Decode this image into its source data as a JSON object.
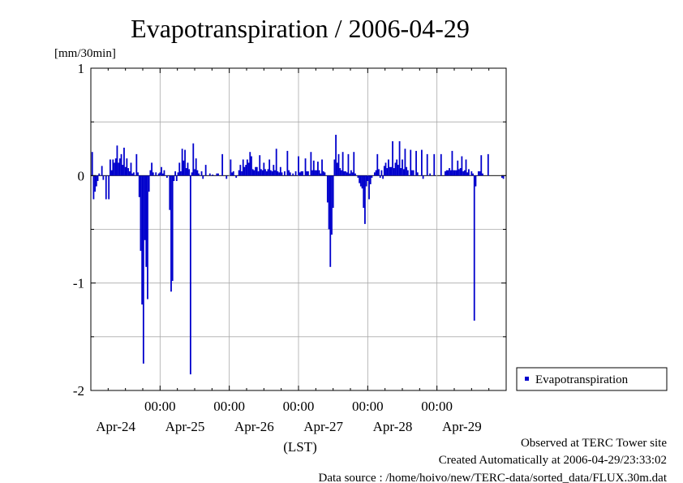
{
  "chart_data": {
    "type": "bar",
    "title": "Evapotranspiration / 2006-04-29",
    "ylabel": "[mm/30min]",
    "xlabel": "(LST)",
    "ylim": [
      -2,
      1
    ],
    "y_ticks": [
      1,
      0,
      -1,
      -2
    ],
    "y_tick_labels": [
      "1",
      "0",
      "-1",
      "-2"
    ],
    "x_unit": "day",
    "xlim": [
      0,
      6
    ],
    "grid": true,
    "series_color": "#0000cc",
    "legend": {
      "label": "Evapotranspiration",
      "placement": "right"
    },
    "x_time_labels": [
      {
        "x": 1,
        "label": "00:00"
      },
      {
        "x": 2,
        "label": "00:00"
      },
      {
        "x": 3,
        "label": "00:00"
      },
      {
        "x": 4,
        "label": "00:00"
      },
      {
        "x": 5,
        "label": "00:00"
      }
    ],
    "x_date_labels": [
      {
        "x": 0.5,
        "label": "Apr-24"
      },
      {
        "x": 1.5,
        "label": "Apr-25"
      },
      {
        "x": 2.5,
        "label": "Apr-26"
      },
      {
        "x": 3.5,
        "label": "Apr-27"
      },
      {
        "x": 4.5,
        "label": "Apr-28"
      },
      {
        "x": 5.5,
        "label": "Apr-29"
      }
    ],
    "series": [
      {
        "name": "Evapotranspiration",
        "points": [
          [
            0.02,
            0.22
          ],
          [
            0.04,
            -0.22
          ],
          [
            0.06,
            -0.15
          ],
          [
            0.08,
            -0.1
          ],
          [
            0.1,
            -0.05
          ],
          [
            0.12,
            0.02
          ],
          [
            0.16,
            0.09
          ],
          [
            0.18,
            -0.04
          ],
          [
            0.22,
            -0.22
          ],
          [
            0.26,
            -0.22
          ],
          [
            0.28,
            0.15
          ],
          [
            0.3,
            0.05
          ],
          [
            0.32,
            0.15
          ],
          [
            0.34,
            0.12
          ],
          [
            0.36,
            0.16
          ],
          [
            0.38,
            0.28
          ],
          [
            0.4,
            0.12
          ],
          [
            0.42,
            0.16
          ],
          [
            0.44,
            0.2
          ],
          [
            0.46,
            0.1
          ],
          [
            0.48,
            0.26
          ],
          [
            0.5,
            0.08
          ],
          [
            0.52,
            0.16
          ],
          [
            0.54,
            0.07
          ],
          [
            0.56,
            0.04
          ],
          [
            0.58,
            0.12
          ],
          [
            0.6,
            0.02
          ],
          [
            0.62,
            0.03
          ],
          [
            0.66,
            0.2
          ],
          [
            0.68,
            0.03
          ],
          [
            0.7,
            -0.2
          ],
          [
            0.72,
            -0.7
          ],
          [
            0.74,
            -1.2
          ],
          [
            0.76,
            -1.75
          ],
          [
            0.78,
            -0.6
          ],
          [
            0.8,
            -0.85
          ],
          [
            0.82,
            -1.15
          ],
          [
            0.84,
            -0.15
          ],
          [
            0.86,
            0.05
          ],
          [
            0.88,
            0.12
          ],
          [
            0.9,
            0.03
          ],
          [
            0.94,
            0.03
          ],
          [
            0.98,
            0.02
          ],
          [
            1.0,
            0.03
          ],
          [
            1.02,
            0.08
          ],
          [
            1.04,
            0.02
          ],
          [
            1.06,
            0.05
          ],
          [
            1.1,
            -0.02
          ],
          [
            1.14,
            -0.32
          ],
          [
            1.16,
            -1.08
          ],
          [
            1.18,
            -0.98
          ],
          [
            1.2,
            -0.05
          ],
          [
            1.22,
            0.04
          ],
          [
            1.24,
            -0.05
          ],
          [
            1.26,
            0.03
          ],
          [
            1.28,
            0.12
          ],
          [
            1.3,
            0.04
          ],
          [
            1.32,
            0.25
          ],
          [
            1.34,
            0.14
          ],
          [
            1.36,
            0.24
          ],
          [
            1.38,
            0.07
          ],
          [
            1.4,
            0.12
          ],
          [
            1.42,
            0.06
          ],
          [
            1.44,
            -1.85
          ],
          [
            1.46,
            0.03
          ],
          [
            1.48,
            0.3
          ],
          [
            1.5,
            0.06
          ],
          [
            1.52,
            0.16
          ],
          [
            1.54,
            0.05
          ],
          [
            1.56,
            0.02
          ],
          [
            1.6,
            0.04
          ],
          [
            1.62,
            -0.03
          ],
          [
            1.66,
            0.1
          ],
          [
            1.72,
            0.02
          ],
          [
            1.76,
            0.01
          ],
          [
            1.82,
            0.02
          ],
          [
            1.84,
            0.02
          ],
          [
            1.9,
            0.2
          ],
          [
            1.96,
            -0.03
          ],
          [
            2.02,
            0.15
          ],
          [
            2.04,
            0.03
          ],
          [
            2.06,
            0.04
          ],
          [
            2.1,
            -0.02
          ],
          [
            2.14,
            0.05
          ],
          [
            2.16,
            0.1
          ],
          [
            2.18,
            0.04
          ],
          [
            2.2,
            0.15
          ],
          [
            2.22,
            0.08
          ],
          [
            2.24,
            0.1
          ],
          [
            2.26,
            0.15
          ],
          [
            2.28,
            0.12
          ],
          [
            2.3,
            0.22
          ],
          [
            2.32,
            0.18
          ],
          [
            2.34,
            0.06
          ],
          [
            2.36,
            0.05
          ],
          [
            2.38,
            0.08
          ],
          [
            2.4,
            0.08
          ],
          [
            2.42,
            0.04
          ],
          [
            2.44,
            0.19
          ],
          [
            2.46,
            0.06
          ],
          [
            2.48,
            0.05
          ],
          [
            2.5,
            0.12
          ],
          [
            2.52,
            0.06
          ],
          [
            2.54,
            0.04
          ],
          [
            2.56,
            0.06
          ],
          [
            2.58,
            0.15
          ],
          [
            2.6,
            0.05
          ],
          [
            2.62,
            0.04
          ],
          [
            2.64,
            0.1
          ],
          [
            2.66,
            0.05
          ],
          [
            2.68,
            0.25
          ],
          [
            2.7,
            0.04
          ],
          [
            2.72,
            0.03
          ],
          [
            2.74,
            0.08
          ],
          [
            2.76,
            0.03
          ],
          [
            2.8,
            0.04
          ],
          [
            2.84,
            0.23
          ],
          [
            2.86,
            0.05
          ],
          [
            2.88,
            0.03
          ],
          [
            2.92,
            0.02
          ],
          [
            2.96,
            0.04
          ],
          [
            3.0,
            0.18
          ],
          [
            3.02,
            0.03
          ],
          [
            3.04,
            0.04
          ],
          [
            3.06,
            0.04
          ],
          [
            3.1,
            0.16
          ],
          [
            3.12,
            0.04
          ],
          [
            3.14,
            0.04
          ],
          [
            3.18,
            0.22
          ],
          [
            3.2,
            0.05
          ],
          [
            3.22,
            0.14
          ],
          [
            3.24,
            0.05
          ],
          [
            3.26,
            0.05
          ],
          [
            3.28,
            0.13
          ],
          [
            3.3,
            0.05
          ],
          [
            3.32,
            0.02
          ],
          [
            3.34,
            0.15
          ],
          [
            3.36,
            0.04
          ],
          [
            3.38,
            0.03
          ],
          [
            3.42,
            -0.25
          ],
          [
            3.44,
            -0.5
          ],
          [
            3.46,
            -0.85
          ],
          [
            3.48,
            -0.55
          ],
          [
            3.5,
            -0.3
          ],
          [
            3.52,
            0.15
          ],
          [
            3.54,
            0.38
          ],
          [
            3.56,
            0.12
          ],
          [
            3.58,
            0.2
          ],
          [
            3.6,
            0.07
          ],
          [
            3.62,
            0.05
          ],
          [
            3.64,
            0.22
          ],
          [
            3.66,
            0.04
          ],
          [
            3.68,
            0.04
          ],
          [
            3.7,
            0.03
          ],
          [
            3.72,
            0.2
          ],
          [
            3.74,
            0.02
          ],
          [
            3.76,
            0.05
          ],
          [
            3.78,
            0.03
          ],
          [
            3.8,
            0.22
          ],
          [
            3.82,
            0.02
          ],
          [
            3.86,
            -0.02
          ],
          [
            3.88,
            -0.07
          ],
          [
            3.9,
            -0.1
          ],
          [
            3.92,
            -0.12
          ],
          [
            3.94,
            -0.3
          ],
          [
            3.96,
            -0.45
          ],
          [
            3.98,
            -0.1
          ],
          [
            4.0,
            -0.05
          ],
          [
            4.02,
            -0.22
          ],
          [
            4.04,
            -0.08
          ],
          [
            4.06,
            -0.02
          ],
          [
            4.1,
            0.03
          ],
          [
            4.12,
            0.05
          ],
          [
            4.14,
            0.2
          ],
          [
            4.16,
            0.06
          ],
          [
            4.18,
            -0.02
          ],
          [
            4.2,
            0.05
          ],
          [
            4.22,
            -0.03
          ],
          [
            4.24,
            0.09
          ],
          [
            4.26,
            0.12
          ],
          [
            4.28,
            0.07
          ],
          [
            4.3,
            0.15
          ],
          [
            4.32,
            0.08
          ],
          [
            4.34,
            0.08
          ],
          [
            4.36,
            0.32
          ],
          [
            4.38,
            0.07
          ],
          [
            4.4,
            0.12
          ],
          [
            4.42,
            0.15
          ],
          [
            4.44,
            0.1
          ],
          [
            4.46,
            0.32
          ],
          [
            4.48,
            0.07
          ],
          [
            4.5,
            0.15
          ],
          [
            4.52,
            0.06
          ],
          [
            4.54,
            0.25
          ],
          [
            4.56,
            0.08
          ],
          [
            4.58,
            0.05
          ],
          [
            4.62,
            0.24
          ],
          [
            4.64,
            0.05
          ],
          [
            4.66,
            0.05
          ],
          [
            4.7,
            0.23
          ],
          [
            4.72,
            0.03
          ],
          [
            4.78,
            0.24
          ],
          [
            4.8,
            -0.03
          ],
          [
            4.86,
            0.2
          ],
          [
            4.9,
            0.02
          ],
          [
            4.96,
            0.2
          ],
          [
            5.06,
            0.2
          ],
          [
            5.12,
            0.04
          ],
          [
            5.14,
            0.05
          ],
          [
            5.16,
            0.05
          ],
          [
            5.18,
            0.07
          ],
          [
            5.2,
            0.05
          ],
          [
            5.22,
            0.23
          ],
          [
            5.24,
            0.05
          ],
          [
            5.26,
            0.05
          ],
          [
            5.28,
            0.05
          ],
          [
            5.3,
            0.14
          ],
          [
            5.32,
            0.06
          ],
          [
            5.34,
            0.07
          ],
          [
            5.36,
            0.18
          ],
          [
            5.38,
            0.04
          ],
          [
            5.4,
            0.05
          ],
          [
            5.42,
            0.15
          ],
          [
            5.44,
            0.03
          ],
          [
            5.46,
            0.06
          ],
          [
            5.5,
            0.04
          ],
          [
            5.52,
            0.02
          ],
          [
            5.54,
            -1.35
          ],
          [
            5.56,
            -0.1
          ],
          [
            5.6,
            0.04
          ],
          [
            5.62,
            0.04
          ],
          [
            5.64,
            0.19
          ],
          [
            5.66,
            0.02
          ],
          [
            5.74,
            0.2
          ],
          [
            5.94,
            -0.02
          ],
          [
            5.96,
            -0.03
          ]
        ]
      }
    ]
  },
  "footer": {
    "observed": "Observed at TERC Tower site",
    "created": "Created Automatically at 2006-04-29/23:33:02",
    "source": "Data source : /home/hoivo/new/TERC-data/sorted_data/FLUX.30m.dat"
  }
}
